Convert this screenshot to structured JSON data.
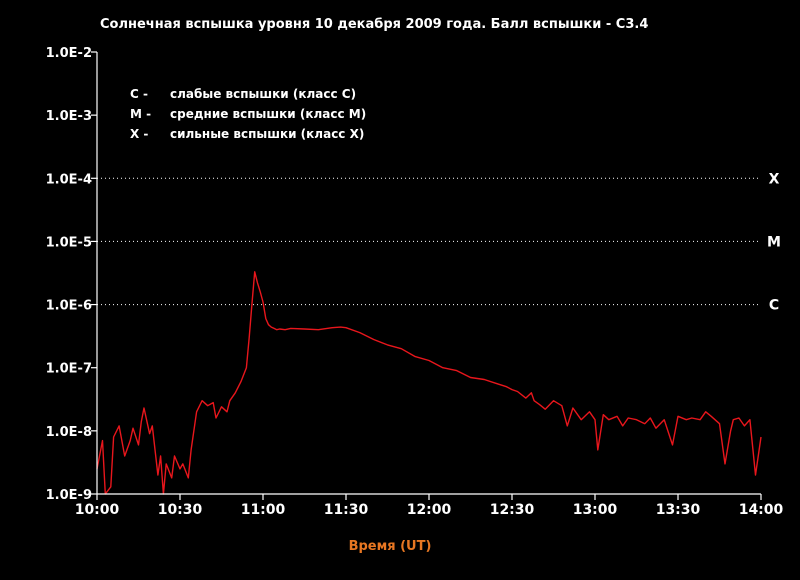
{
  "chart_data": {
    "type": "line",
    "title": "Солнечная вспышка уровня 10 декабря 2009 года. Балл вспышки - C3.4",
    "xlabel": "Время (UT)",
    "ylabel": "",
    "y_scale": "log",
    "ylim": [
      1e-09,
      0.01
    ],
    "xlim": [
      "10:00",
      "14:00"
    ],
    "x_ticks": [
      "10:00",
      "10:30",
      "11:00",
      "11:30",
      "12:00",
      "12:30",
      "13:00",
      "13:30",
      "14:00"
    ],
    "y_ticks": [
      "1.0E-9",
      "1.0E-8",
      "1.0E-7",
      "1.0E-6",
      "1.0E-5",
      "1.0E-4",
      "1.0E-3",
      "1.0E-2"
    ],
    "grid": "dotted lines at class thresholds",
    "line_color": "#e8161c",
    "class_levels": [
      {
        "label": "C",
        "value": 1e-06
      },
      {
        "label": "M",
        "value": 1e-05
      },
      {
        "label": "X",
        "value": 0.0001
      }
    ],
    "legend": [
      {
        "key": "C  -",
        "text": "слабые вспышки  (класс С)"
      },
      {
        "key": "M  -",
        "text": "средние вспышки (класс М)"
      },
      {
        "key": "X  -",
        "text": "сильные вспышки (класс Х)"
      }
    ],
    "series": [
      {
        "x": [
          "10:00",
          "10:02",
          "10:03",
          "10:05",
          "10:06",
          "10:08",
          "10:10",
          "10:12",
          "10:13",
          "10:15",
          "10:16",
          "10:17",
          "10:19",
          "10:20",
          "10:22",
          "10:23",
          "10:24",
          "10:25",
          "10:27",
          "10:28",
          "10:30",
          "10:31",
          "10:33",
          "10:34",
          "10:36",
          "10:38",
          "10:40",
          "10:42",
          "10:43",
          "10:45",
          "10:47",
          "10:48",
          "10:50",
          "10:52",
          "10:54",
          "10:55",
          "10:56",
          "10:57",
          "10:58",
          "10:59",
          "11:00",
          "11:01",
          "11:02",
          "11:03",
          "11:04",
          "11:05",
          "11:06",
          "11:08",
          "11:10",
          "11:15",
          "11:20",
          "11:25",
          "11:28",
          "11:30",
          "11:35",
          "11:40",
          "11:45",
          "11:50",
          "11:55",
          "12:00",
          "12:05",
          "12:10",
          "12:15",
          "12:20",
          "12:25",
          "12:28",
          "12:30",
          "12:32",
          "12:35",
          "12:37",
          "12:38",
          "12:40",
          "12:42",
          "12:45",
          "12:48",
          "12:50",
          "12:52",
          "12:55",
          "12:58",
          "13:00",
          "13:01",
          "13:03",
          "13:05",
          "13:08",
          "13:10",
          "13:12",
          "13:15",
          "13:18",
          "13:20",
          "13:22",
          "13:25",
          "13:28",
          "13:30",
          "13:33",
          "13:35",
          "13:38",
          "13:40",
          "13:42",
          "13:45",
          "13:47",
          "13:49",
          "13:50",
          "13:52",
          "13:54",
          "13:56",
          "13:58",
          "14:00"
        ],
        "y": [
          2.5e-09,
          7e-09,
          1e-09,
          1.3e-09,
          8e-09,
          1.2e-08,
          4e-09,
          7e-09,
          1.1e-08,
          6e-09,
          1.4e-08,
          2.3e-08,
          9e-09,
          1.2e-08,
          2e-09,
          4e-09,
          1e-09,
          3e-09,
          1.8e-09,
          4e-09,
          2.5e-09,
          3e-09,
          1.8e-09,
          5e-09,
          2e-08,
          3e-08,
          2.5e-08,
          2.8e-08,
          1.6e-08,
          2.4e-08,
          2e-08,
          3e-08,
          4e-08,
          6e-08,
          1e-07,
          3e-07,
          1e-06,
          3.3e-06,
          2.2e-06,
          1.6e-06,
          1.1e-06,
          6e-07,
          4.8e-07,
          4.4e-07,
          4.2e-07,
          4e-07,
          4.1e-07,
          4e-07,
          4.2e-07,
          4.1e-07,
          4e-07,
          4.3e-07,
          4.4e-07,
          4.3e-07,
          3.6e-07,
          2.8e-07,
          2.3e-07,
          2e-07,
          1.5e-07,
          1.3e-07,
          1e-07,
          9e-08,
          7e-08,
          6.5e-08,
          5.5e-08,
          5e-08,
          4.5e-08,
          4.2e-08,
          3.3e-08,
          4e-08,
          3e-08,
          2.6e-08,
          2.2e-08,
          3e-08,
          2.5e-08,
          1.2e-08,
          2.3e-08,
          1.5e-08,
          2e-08,
          1.5e-08,
          5e-09,
          1.8e-08,
          1.5e-08,
          1.7e-08,
          1.2e-08,
          1.6e-08,
          1.5e-08,
          1.3e-08,
          1.6e-08,
          1.1e-08,
          1.5e-08,
          6e-09,
          1.7e-08,
          1.5e-08,
          1.6e-08,
          1.5e-08,
          2e-08,
          1.7e-08,
          1.3e-08,
          3e-09,
          1e-08,
          1.5e-08,
          1.6e-08,
          1.2e-08,
          1.5e-08,
          2e-09,
          8e-09
        ]
      }
    ]
  }
}
